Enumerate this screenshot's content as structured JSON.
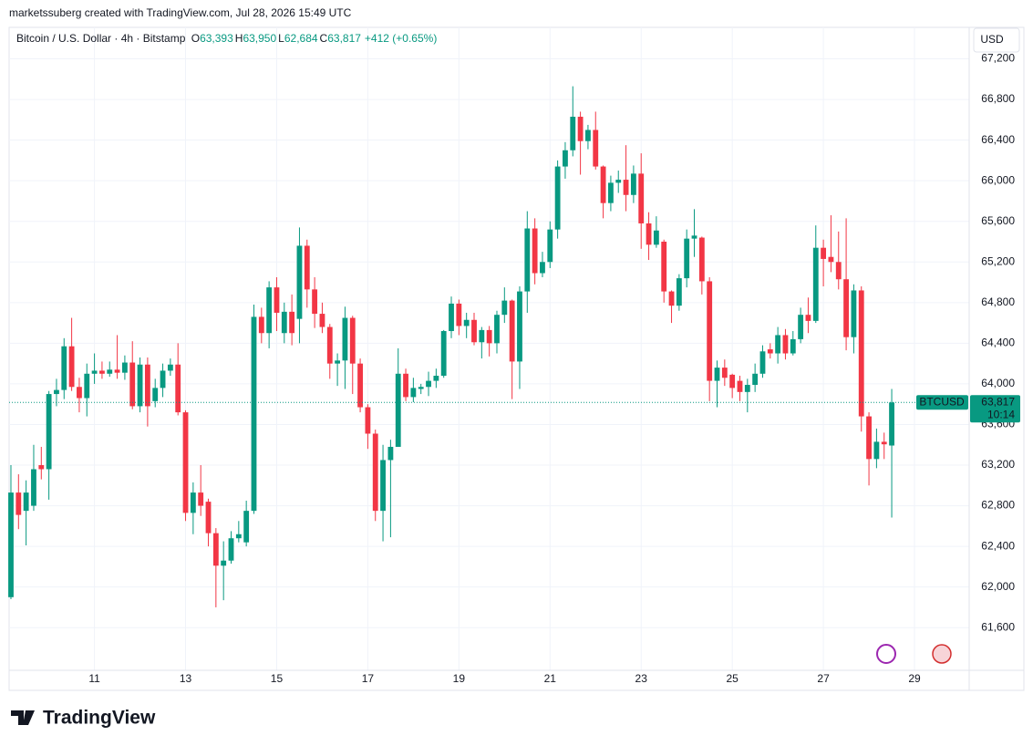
{
  "header": {
    "attribution": "marketssuberg created with TradingView.com, Jul 28, 2026 15:49 UTC",
    "symbol": "Bitcoin / U.S. Dollar · 4h · Bitstamp",
    "ohlc": [
      {
        "key": "O",
        "value": "63,393"
      },
      {
        "key": "H",
        "value": "63,950"
      },
      {
        "key": "L",
        "value": "62,684"
      },
      {
        "key": "C",
        "value": "63,817"
      }
    ],
    "change": "+412 (+0.65%)",
    "currency": "USD",
    "logo": "TradingView"
  },
  "price_badge": {
    "symbol": "BTCUSD",
    "price": "63,817",
    "countdown": "10:14"
  },
  "chart_data": {
    "type": "candlestick",
    "up_color": "#089981",
    "down_color": "#f23645",
    "grid": true,
    "x": [
      9.1667,
      9.3333,
      9.5,
      9.6667,
      9.8333,
      10,
      10.1667,
      10.3333,
      10.5,
      10.6667,
      10.8333,
      11,
      11.1667,
      11.3333,
      11.5,
      11.6667,
      11.8333,
      12,
      12.1667,
      12.3333,
      12.5,
      12.6667,
      12.8333,
      13,
      13.1667,
      13.3333,
      13.5,
      13.6667,
      13.8333,
      14,
      14.1667,
      14.3333,
      14.5,
      14.6667,
      14.8333,
      15,
      15.1667,
      15.3333,
      15.5,
      15.6667,
      15.8333,
      16,
      16.1667,
      16.3333,
      16.5,
      16.6667,
      16.8333,
      17,
      17.1667,
      17.3333,
      17.5,
      17.6667,
      17.8333,
      18,
      18.1667,
      18.3333,
      18.5,
      18.6667,
      18.8333,
      19,
      19.1667,
      19.3333,
      19.5,
      19.6667,
      19.8333,
      20,
      20.1667,
      20.3333,
      20.5,
      20.6667,
      20.8333,
      21,
      21.1667,
      21.3333,
      21.5,
      21.6667,
      21.8333,
      22,
      22.1667,
      22.3333,
      22.5,
      22.6667,
      22.8333,
      23,
      23.1667,
      23.3333,
      23.5,
      23.6667,
      23.8333,
      24,
      24.1667,
      24.3333,
      24.5,
      24.6667,
      24.8333,
      25,
      25.1667,
      25.3333,
      25.5,
      25.6667,
      25.8333,
      26,
      26.1667,
      26.3333,
      26.5,
      26.6667,
      26.8333,
      27,
      27.1667,
      27.3333,
      27.5,
      27.6667,
      27.8333,
      28,
      28.1667,
      28.3333,
      28.5
    ],
    "open": [
      61900,
      62930,
      62750,
      62800,
      63200,
      63160,
      63900,
      63940,
      64370,
      63970,
      63860,
      64100,
      64130,
      64100,
      64140,
      64110,
      64210,
      63780,
      64190,
      63830,
      63960,
      64130,
      64190,
      63720,
      62730,
      62930,
      62840,
      62530,
      62210,
      62260,
      62480,
      62440,
      62750,
      64660,
      64500,
      64950,
      64500,
      64710,
      64640,
      65360,
      64930,
      64690,
      64560,
      64200,
      64230,
      64650,
      64200,
      63770,
      63510,
      62750,
      63250,
      63380,
      64100,
      63870,
      63950,
      63970,
      64030,
      64080,
      64520,
      64790,
      64570,
      64630,
      64410,
      64530,
      64400,
      64680,
      64820,
      64220,
      64910,
      65530,
      65090,
      65200,
      65520,
      66140,
      66300,
      66630,
      66390,
      66500,
      66140,
      65780,
      65980,
      66010,
      65860,
      66070,
      65580,
      65370,
      65400,
      64910,
      64770,
      65040,
      65430,
      65440,
      65010,
      64030,
      64160,
      64090,
      64030,
      63920,
      63990,
      64100,
      64340,
      64300,
      64480,
      64300,
      64440,
      64680,
      64620,
      65340,
      65250,
      65200,
      65030,
      64460,
      64920,
      63680,
      63260,
      63430,
      63393
    ],
    "high": [
      63200,
      63110,
      63050,
      63400,
      63380,
      63930,
      64050,
      64450,
      64650,
      64060,
      64200,
      64300,
      64220,
      64220,
      64480,
      64280,
      64420,
      64260,
      64260,
      64050,
      64200,
      64250,
      64400,
      63740,
      63030,
      63200,
      62870,
      62580,
      62450,
      62550,
      62650,
      62850,
      64780,
      64750,
      65010,
      65050,
      64800,
      64880,
      65540,
      65420,
      65050,
      64800,
      64590,
      64300,
      64760,
      64670,
      64250,
      63800,
      63550,
      63400,
      63450,
      64350,
      64150,
      64060,
      64000,
      64120,
      64150,
      64530,
      64860,
      64830,
      64700,
      64700,
      64560,
      64570,
      64720,
      64950,
      64830,
      64960,
      65700,
      65630,
      65300,
      65600,
      66200,
      66380,
      66930,
      66680,
      66550,
      66680,
      66150,
      66050,
      66100,
      66350,
      66150,
      66270,
      65690,
      65650,
      65420,
      64920,
      65080,
      65520,
      65720,
      65450,
      65050,
      64230,
      64240,
      64100,
      64080,
      64050,
      64200,
      64380,
      64400,
      64560,
      64540,
      64520,
      64750,
      64850,
      65560,
      65420,
      65660,
      65500,
      65630,
      64980,
      64960,
      63720,
      63560,
      63520,
      63950
    ],
    "low": [
      61880,
      62570,
      62410,
      62750,
      63060,
      62860,
      63780,
      63850,
      63930,
      63720,
      63680,
      64000,
      64050,
      64070,
      64050,
      64040,
      63750,
      63720,
      63580,
      63770,
      63870,
      64080,
      63690,
      62650,
      62520,
      62700,
      62400,
      61800,
      61870,
      62230,
      62440,
      62400,
      62720,
      64400,
      64350,
      64520,
      64400,
      64380,
      64400,
      64750,
      64550,
      64500,
      64050,
      63980,
      63950,
      63900,
      63720,
      63360,
      62650,
      62450,
      62490,
      63380,
      63830,
      63820,
      63900,
      63880,
      63960,
      64060,
      64450,
      64480,
      64450,
      64380,
      64250,
      64270,
      64300,
      64600,
      63850,
      63950,
      64700,
      64980,
      65050,
      65140,
      65430,
      66020,
      66240,
      66060,
      66310,
      66110,
      65630,
      65700,
      65880,
      65700,
      65780,
      65330,
      65220,
      65340,
      64800,
      64600,
      64720,
      64950,
      65250,
      64880,
      63830,
      63770,
      63980,
      63860,
      63830,
      63720,
      63920,
      64060,
      64250,
      64200,
      64240,
      64280,
      64400,
      64500,
      64600,
      64960,
      65100,
      64930,
      64330,
      64300,
      63530,
      63000,
      63170,
      63260,
      62684
    ],
    "close": [
      62930,
      62710,
      62930,
      63160,
      63160,
      63900,
      63940,
      64370,
      63970,
      63860,
      64100,
      64130,
      64100,
      64140,
      64110,
      64210,
      63780,
      64190,
      63780,
      63960,
      64130,
      64190,
      63720,
      62730,
      62930,
      62800,
      62530,
      62210,
      62260,
      62480,
      62520,
      62750,
      64660,
      64500,
      64950,
      64700,
      64710,
      64500,
      65360,
      64930,
      64690,
      64560,
      64200,
      64230,
      64650,
      64200,
      63770,
      63510,
      62750,
      63250,
      63380,
      64100,
      63870,
      63960,
      63970,
      64030,
      64080,
      64520,
      64790,
      64570,
      64630,
      64410,
      64530,
      64400,
      64680,
      64820,
      64220,
      64910,
      65530,
      65090,
      65200,
      65520,
      66140,
      66300,
      66630,
      66390,
      66500,
      66140,
      65780,
      65980,
      66010,
      65860,
      66070,
      65580,
      65370,
      65510,
      64910,
      64770,
      65040,
      65430,
      65460,
      65010,
      64030,
      64160,
      64060,
      63960,
      63920,
      63990,
      64100,
      64320,
      64300,
      64480,
      64300,
      64440,
      64680,
      64620,
      65340,
      65230,
      65200,
      65030,
      64460,
      64920,
      63680,
      63260,
      63430,
      63405,
      63817
    ],
    "xlim": [
      9.127,
      30.2
    ],
    "xticks": [
      11,
      13,
      15,
      17,
      19,
      21,
      23,
      25,
      27,
      29
    ],
    "ylim": [
      61180,
      67510
    ],
    "yticks": [
      {
        "value": 61600,
        "label": "61,600"
      },
      {
        "value": 62000,
        "label": "62,000"
      },
      {
        "value": 62400,
        "label": "62,400"
      },
      {
        "value": 62800,
        "label": "62,800"
      },
      {
        "value": 63200,
        "label": "63,200"
      },
      {
        "value": 63600,
        "label": "63,600"
      },
      {
        "value": 64000,
        "label": "64,000"
      },
      {
        "value": 64400,
        "label": "64,400"
      },
      {
        "value": 64800,
        "label": "64,800"
      },
      {
        "value": 65200,
        "label": "65,200"
      },
      {
        "value": 65600,
        "label": "65,600"
      },
      {
        "value": 66000,
        "label": "66,000"
      },
      {
        "value": 66400,
        "label": "66,400"
      },
      {
        "value": 66800,
        "label": "66,800"
      },
      {
        "value": 67200,
        "label": "67,200"
      }
    ]
  }
}
